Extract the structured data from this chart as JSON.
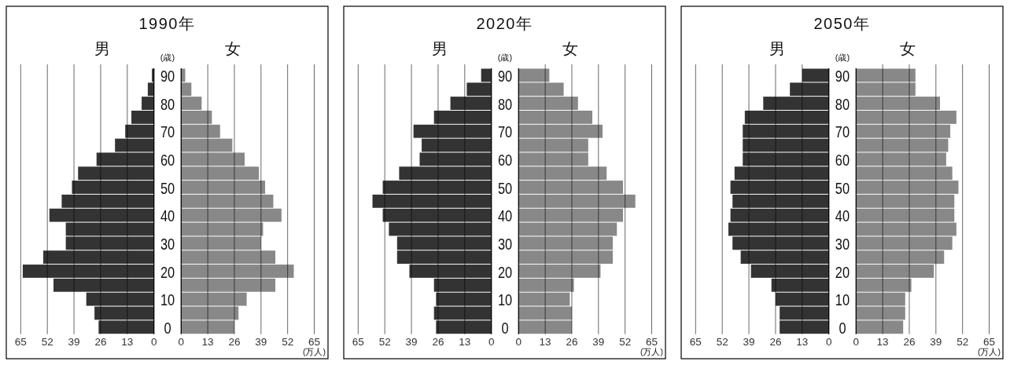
{
  "chart_data": [
    {
      "type": "bar",
      "orientation": "horizontal",
      "title": "1990年",
      "ylabel": "(歳)",
      "xlabel": "(万人)",
      "categories": [
        "90",
        null,
        "80",
        null,
        "70",
        null,
        "60",
        null,
        "50",
        null,
        "40",
        null,
        "30",
        null,
        "20",
        null,
        "10",
        null,
        "0"
      ],
      "series": [
        {
          "name": "男",
          "color": "#333333",
          "axis": "x2",
          "values": [
            1,
            3,
            6,
            11,
            14,
            19,
            28,
            37,
            40,
            45,
            51,
            43,
            43,
            54,
            64,
            49,
            33,
            29,
            27
          ]
        },
        {
          "name": "女",
          "color": "#888888",
          "values": [
            2,
            5,
            10,
            15,
            19,
            25,
            31,
            38,
            41,
            45,
            49,
            40,
            39,
            46,
            55,
            46,
            32,
            28,
            26
          ]
        }
      ],
      "x2lim": [
        65,
        0
      ],
      "x2ticks": [
        65,
        52,
        39,
        26,
        13,
        0
      ],
      "xlim": [
        0,
        65
      ],
      "xticks": [
        0,
        13,
        26,
        39,
        52,
        65
      ],
      "grid": "x"
    },
    {
      "type": "bar",
      "orientation": "horizontal",
      "title": "2020年",
      "ylabel": "(歳)",
      "xlabel": "(万人)",
      "categories": [
        "90",
        null,
        "80",
        null,
        "70",
        null,
        "60",
        null,
        "50",
        null,
        "40",
        null,
        "30",
        null,
        "20",
        null,
        "10",
        null,
        "0"
      ],
      "series": [
        {
          "name": "男",
          "color": "#333333",
          "axis": "x2",
          "values": [
            5,
            12,
            20,
            28,
            38,
            34,
            35,
            45,
            53,
            58,
            53,
            50,
            46,
            46,
            40,
            28,
            27,
            28,
            27
          ]
        },
        {
          "name": "女",
          "color": "#888888",
          "values": [
            15,
            22,
            29,
            36,
            41,
            34,
            34,
            43,
            51,
            57,
            51,
            48,
            46,
            46,
            40,
            27,
            25,
            26,
            26
          ]
        }
      ],
      "x2lim": [
        65,
        0
      ],
      "x2ticks": [
        65,
        52,
        39,
        26,
        13,
        0
      ],
      "xlim": [
        0,
        65
      ],
      "xticks": [
        0,
        13,
        26,
        39,
        52,
        65
      ],
      "grid": "x"
    },
    {
      "type": "bar",
      "orientation": "horizontal",
      "title": "2050年",
      "ylabel": "(歳)",
      "xlabel": "(万人)",
      "categories": [
        "90",
        null,
        "80",
        null,
        "70",
        null,
        "60",
        null,
        "50",
        null,
        "40",
        null,
        "30",
        null,
        "20",
        null,
        "10",
        null,
        "0"
      ],
      "series": [
        {
          "name": "男",
          "color": "#333333",
          "axis": "x2",
          "values": [
            13,
            19,
            32,
            41,
            42,
            42,
            42,
            46,
            48,
            47,
            48,
            49,
            47,
            43,
            38,
            28,
            26,
            24,
            24
          ]
        },
        {
          "name": "女",
          "color": "#888888",
          "values": [
            29,
            29,
            41,
            49,
            46,
            45,
            44,
            47,
            50,
            48,
            48,
            49,
            47,
            43,
            38,
            27,
            24,
            24,
            23
          ]
        }
      ],
      "x2lim": [
        65,
        0
      ],
      "x2ticks": [
        65,
        52,
        39,
        26,
        13,
        0
      ],
      "xlim": [
        0,
        65
      ],
      "xticks": [
        0,
        13,
        26,
        39,
        52,
        65
      ],
      "grid": "x"
    }
  ]
}
